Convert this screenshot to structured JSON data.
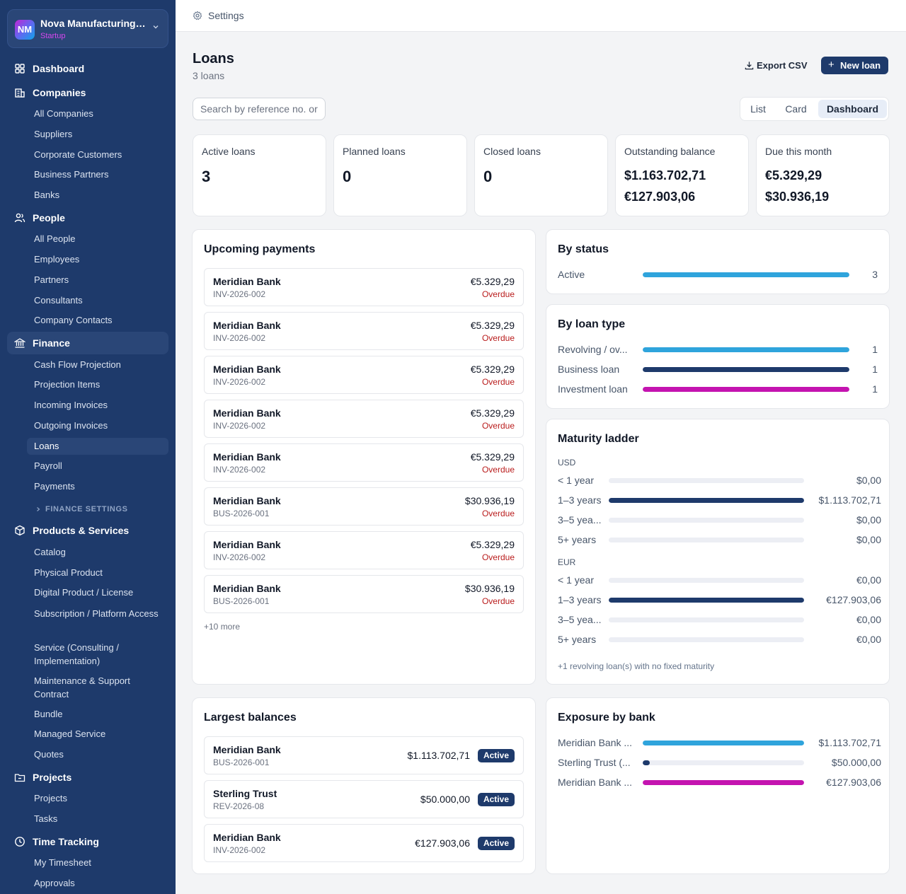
{
  "org": {
    "initials": "NM",
    "name": "Nova Manufacturing ...",
    "plan": "Startup"
  },
  "nav": {
    "dashboard": "Dashboard",
    "companies": {
      "label": "Companies",
      "items": [
        "All Companies",
        "Suppliers",
        "Corporate Customers",
        "Business Partners",
        "Banks"
      ]
    },
    "people": {
      "label": "People",
      "items": [
        "All People",
        "Employees",
        "Partners",
        "Consultants",
        "Company Contacts"
      ]
    },
    "finance": {
      "label": "Finance",
      "items": [
        "Cash Flow Projection",
        "Projection Items",
        "Incoming Invoices",
        "Outgoing Invoices",
        "Loans",
        "Payroll",
        "Payments"
      ],
      "settings": "FINANCE SETTINGS"
    },
    "products": {
      "label": "Products & Services",
      "items": [
        "Catalog",
        "Physical Product",
        "Digital Product / License",
        "Subscription / Platform Access",
        "Service (Consulting / Implementation)",
        "Maintenance & Support Contract",
        "Bundle",
        "Managed Service",
        "Quotes"
      ]
    },
    "projects": {
      "label": "Projects",
      "items": [
        "Projects",
        "Tasks"
      ]
    },
    "time": {
      "label": "Time Tracking",
      "items": [
        "My Timesheet",
        "Approvals"
      ]
    }
  },
  "topbar": {
    "breadcrumb": "Settings"
  },
  "page": {
    "title": "Loans",
    "subtitle": "3 loans",
    "export_label": "Export CSV",
    "new_label": "New loan",
    "search_placeholder": "Search by reference no. or",
    "views": [
      "List",
      "Card",
      "Dashboard"
    ],
    "active_view": "Dashboard"
  },
  "kpis": {
    "active": {
      "label": "Active loans",
      "value": "3"
    },
    "planned": {
      "label": "Planned loans",
      "value": "0"
    },
    "closed": {
      "label": "Closed loans",
      "value": "0"
    },
    "outstanding": {
      "label": "Outstanding balance",
      "lines": [
        "$1.163.702,71",
        "€127.903,06"
      ]
    },
    "due": {
      "label": "Due this month",
      "lines": [
        "€5.329,29",
        "$30.936,19"
      ]
    }
  },
  "upcoming": {
    "title": "Upcoming payments",
    "rows": [
      {
        "bank": "Meridian Bank",
        "ref": "INV-2026-002",
        "amount": "€5.329,29",
        "status": "Overdue"
      },
      {
        "bank": "Meridian Bank",
        "ref": "INV-2026-002",
        "amount": "€5.329,29",
        "status": "Overdue"
      },
      {
        "bank": "Meridian Bank",
        "ref": "INV-2026-002",
        "amount": "€5.329,29",
        "status": "Overdue"
      },
      {
        "bank": "Meridian Bank",
        "ref": "INV-2026-002",
        "amount": "€5.329,29",
        "status": "Overdue"
      },
      {
        "bank": "Meridian Bank",
        "ref": "INV-2026-002",
        "amount": "€5.329,29",
        "status": "Overdue"
      },
      {
        "bank": "Meridian Bank",
        "ref": "BUS-2026-001",
        "amount": "$30.936,19",
        "status": "Overdue"
      },
      {
        "bank": "Meridian Bank",
        "ref": "INV-2026-002",
        "amount": "€5.329,29",
        "status": "Overdue"
      },
      {
        "bank": "Meridian Bank",
        "ref": "BUS-2026-001",
        "amount": "$30.936,19",
        "status": "Overdue"
      }
    ],
    "more": "+10 more"
  },
  "by_status": {
    "title": "By status",
    "rows": [
      {
        "label": "Active",
        "count": "3",
        "fraction": 1.0,
        "color": "#2fa4dc"
      }
    ]
  },
  "by_type": {
    "title": "By loan type",
    "rows": [
      {
        "label": "Revolving / ov...",
        "count": "1",
        "fraction": 1.0,
        "color": "#2fa4dc"
      },
      {
        "label": "Business loan",
        "count": "1",
        "fraction": 1.0,
        "color": "#1e3a6b"
      },
      {
        "label": "Investment loan",
        "count": "1",
        "fraction": 1.0,
        "color": "#c414b0"
      }
    ]
  },
  "maturity": {
    "title": "Maturity ladder",
    "groups": [
      {
        "currency": "USD",
        "rows": [
          {
            "label": "< 1 year",
            "value": "$0,00",
            "fraction": 0
          },
          {
            "label": "1–3 years",
            "value": "$1.113.702,71",
            "fraction": 1.0
          },
          {
            "label": "3–5 yea...",
            "value": "$0,00",
            "fraction": 0
          },
          {
            "label": "5+ years",
            "value": "$0,00",
            "fraction": 0
          }
        ]
      },
      {
        "currency": "EUR",
        "rows": [
          {
            "label": "< 1 year",
            "value": "€0,00",
            "fraction": 0
          },
          {
            "label": "1–3 years",
            "value": "€127.903,06",
            "fraction": 1.0
          },
          {
            "label": "3–5 yea...",
            "value": "€0,00",
            "fraction": 0
          },
          {
            "label": "5+ years",
            "value": "€0,00",
            "fraction": 0
          }
        ]
      }
    ],
    "note": "+1 revolving loan(s) with no fixed maturity",
    "bar_color": "#1e3a6b"
  },
  "largest": {
    "title": "Largest balances",
    "rows": [
      {
        "bank": "Meridian Bank",
        "ref": "BUS-2026-001",
        "amount": "$1.113.702,71",
        "status": "Active"
      },
      {
        "bank": "Sterling Trust",
        "ref": "REV-2026-08",
        "amount": "$50.000,00",
        "status": "Active"
      },
      {
        "bank": "Meridian Bank",
        "ref": "INV-2026-002",
        "amount": "€127.903,06",
        "status": "Active"
      }
    ]
  },
  "exposure": {
    "title": "Exposure by bank",
    "rows": [
      {
        "label": "Meridian Bank ...",
        "value": "$1.113.702,71",
        "fraction": 1.0,
        "color": "#2fa4dc"
      },
      {
        "label": "Sterling Trust (...",
        "value": "$50.000,00",
        "fraction": 0.045,
        "color": "#1e3a6b"
      },
      {
        "label": "Meridian Bank ...",
        "value": "€127.903,06",
        "fraction": 1.0,
        "color": "#c414b0"
      }
    ]
  }
}
